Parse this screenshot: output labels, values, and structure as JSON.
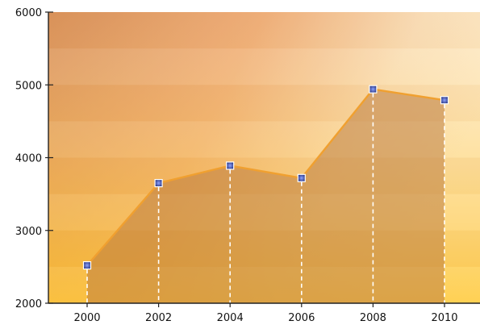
{
  "chart_data": {
    "type": "area",
    "title": "",
    "xlabel": "",
    "ylabel": "",
    "x": [
      "2000",
      "2002",
      "2004",
      "2006",
      "2008",
      "2010"
    ],
    "series": [
      {
        "values": [
          2520,
          3650,
          3890,
          3720,
          4940,
          4790
        ]
      }
    ],
    "ylim": [
      2000,
      6000
    ],
    "yticks": [
      "2000",
      "3000",
      "4000",
      "5000",
      "6000"
    ],
    "grid": false,
    "markers": "square",
    "drop_lines": true,
    "colors": {
      "line": "#f0a030",
      "area": "#b8753a",
      "marker": "#2a3a8c",
      "drop_line": "#ffffff"
    }
  }
}
